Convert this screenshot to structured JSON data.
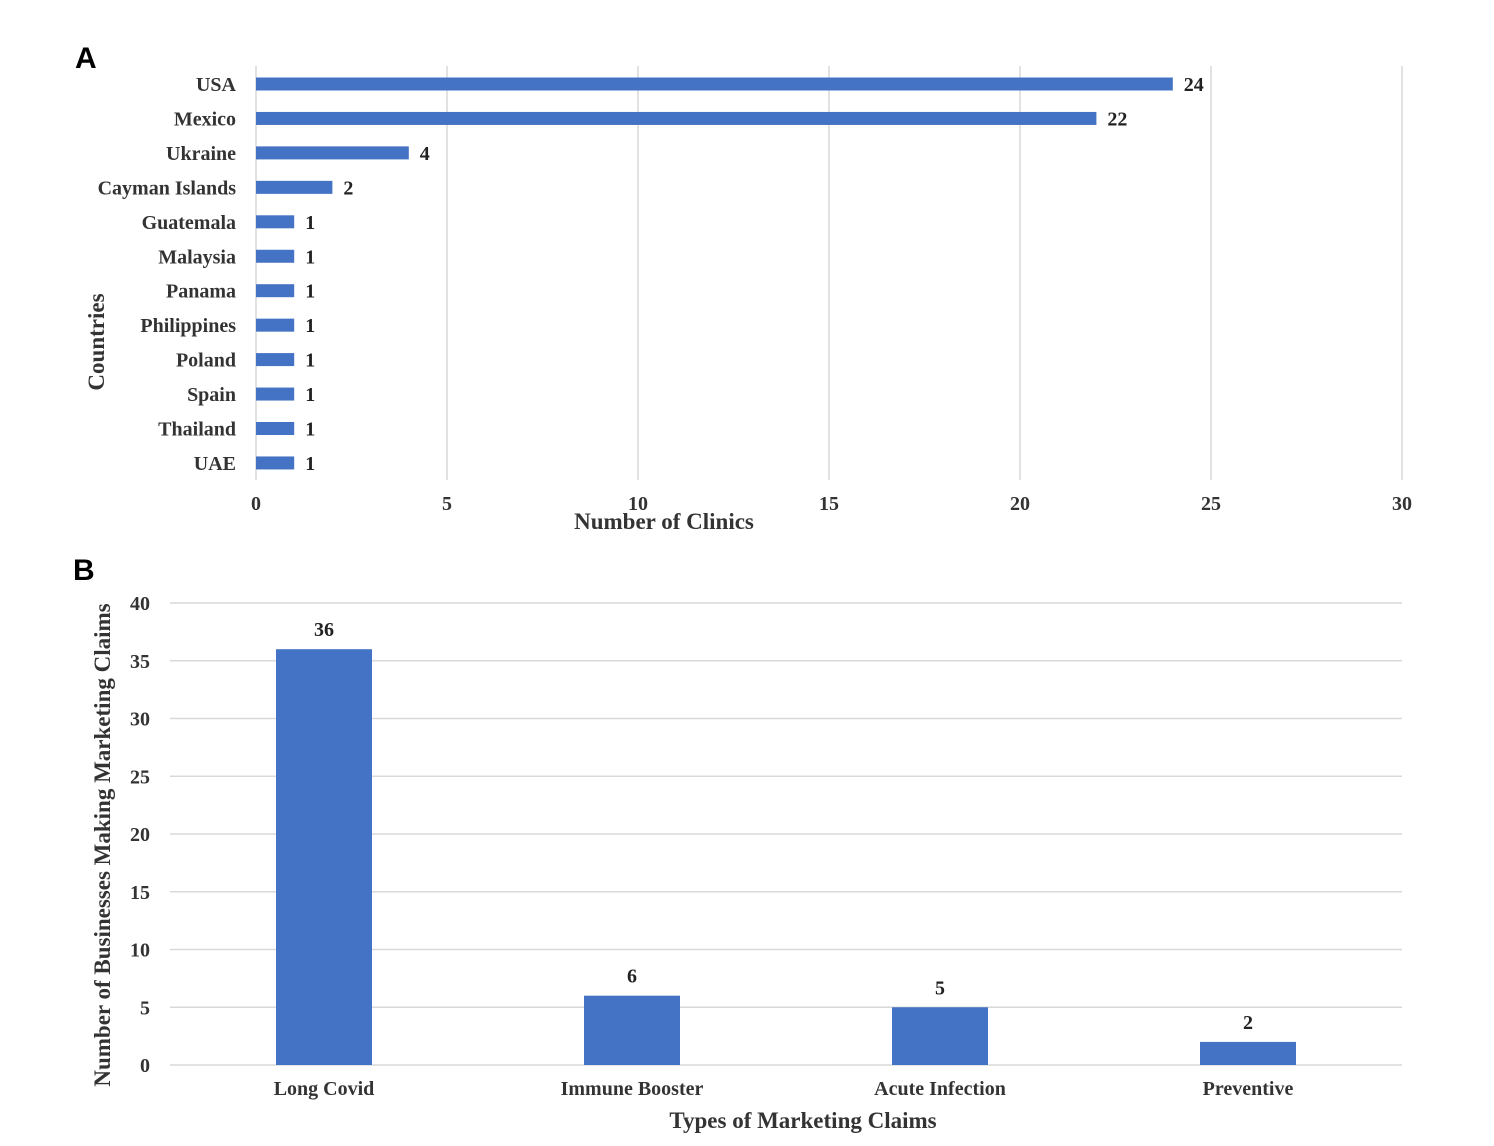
{
  "chart_data": [
    {
      "panel": "A",
      "type": "bar",
      "orientation": "horizontal",
      "categories": [
        "USA",
        "Mexico",
        "Ukraine",
        "Cayman Islands",
        "Guatemala",
        "Malaysia",
        "Panama",
        "Philippines",
        "Poland",
        "Spain",
        "Thailand",
        "UAE"
      ],
      "values": [
        24,
        22,
        4,
        2,
        1,
        1,
        1,
        1,
        1,
        1,
        1,
        1
      ],
      "xlabel": "Number of Clinics",
      "ylabel": "Countries",
      "xlim": [
        0,
        30
      ],
      "xticks": [
        0,
        5,
        10,
        15,
        20,
        25,
        30
      ],
      "grid": "vertical",
      "color": "#4472c4"
    },
    {
      "panel": "B",
      "type": "bar",
      "orientation": "vertical",
      "categories": [
        "Long Covid",
        "Immune Booster",
        "Acute Infection",
        "Preventive"
      ],
      "values": [
        36,
        6,
        5,
        2
      ],
      "xlabel": "Types of Marketing Claims",
      "ylabel": "Number of Businesses Making Marketing Claims",
      "ylim": [
        0,
        40
      ],
      "yticks": [
        0,
        5,
        10,
        15,
        20,
        25,
        30,
        35,
        40
      ],
      "grid": "horizontal",
      "color": "#4472c4"
    }
  ]
}
